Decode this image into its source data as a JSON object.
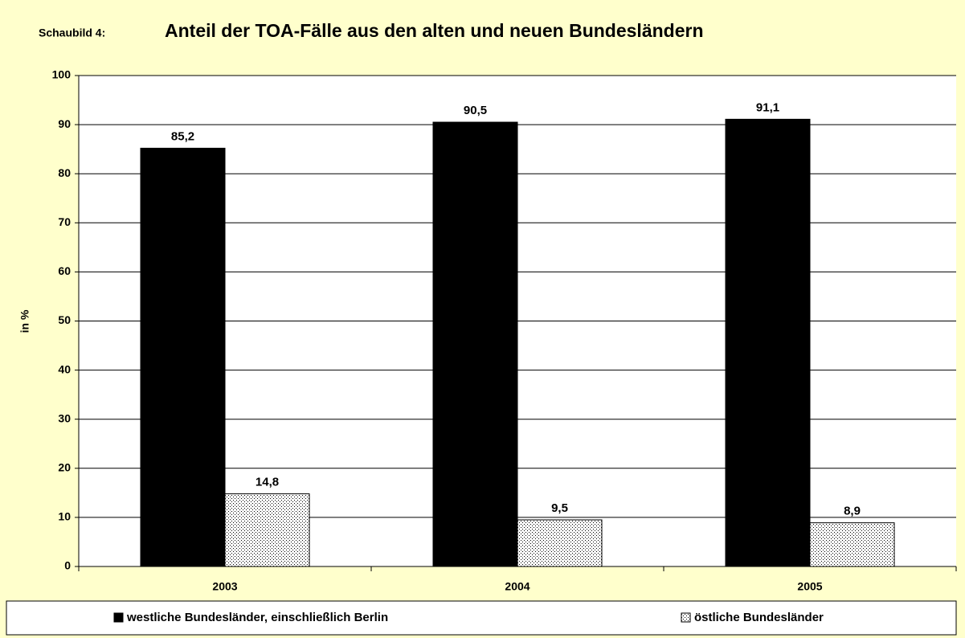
{
  "chart_data": {
    "type": "bar",
    "label": "Schaubild 4:",
    "title": "Anteil der TOA-Fälle aus den alten und neuen Bundesländern",
    "y_label": "in %",
    "categories": [
      "2003",
      "2004",
      "2005"
    ],
    "series": [
      {
        "name": "westliche Bundesländer, einschließlich Berlin",
        "color": "#000000",
        "values": [
          85.2,
          90.5,
          91.1
        ],
        "value_labels": [
          "85,2",
          "90,5",
          "91,1"
        ]
      },
      {
        "name": "östliche Bundesländer",
        "color": "#ffffff",
        "pattern": "dots",
        "values": [
          14.8,
          9.5,
          8.9
        ],
        "value_labels": [
          "14,8",
          "9,5",
          "8,9"
        ]
      }
    ],
    "ylim": [
      0,
      100
    ],
    "yticks": [
      0,
      10,
      20,
      30,
      40,
      50,
      60,
      70,
      80,
      90,
      100
    ],
    "grid": true
  }
}
